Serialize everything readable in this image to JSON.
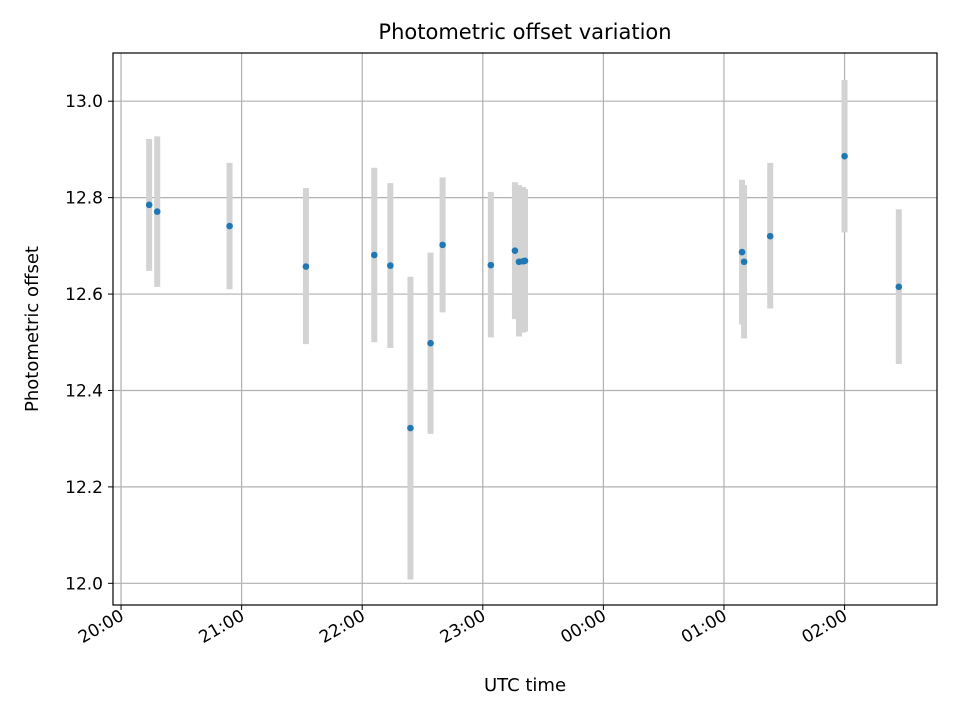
{
  "chart_data": {
    "type": "scatter",
    "title": "Photometric offset variation",
    "xlabel": "UTC time",
    "ylabel": "Photometric offset",
    "x_tick_labels": [
      "20:00",
      "21:00",
      "22:00",
      "23:00",
      "00:00",
      "01:00",
      "02:00"
    ],
    "x_tick_times": [
      "20:00",
      "21:00",
      "22:00",
      "23:00",
      "00:00",
      "01:00",
      "02:00"
    ],
    "y_ticks": [
      12.0,
      12.2,
      12.4,
      12.6,
      12.8,
      13.0
    ],
    "y_tick_labels": [
      "12.0",
      "12.2",
      "12.4",
      "12.6",
      "12.8",
      "13.0"
    ],
    "xlim": [
      "19:56",
      "02:46"
    ],
    "ylim": [
      11.955,
      13.1
    ],
    "grid": true,
    "colors": {
      "point": "#1f77b4",
      "errorbar": "#d3d3d3"
    },
    "series": [
      {
        "points": [
          {
            "time": "20:14",
            "y": 12.785,
            "y_low": 12.648,
            "y_high": 12.922
          },
          {
            "time": "20:18",
            "y": 12.771,
            "y_low": 12.615,
            "y_high": 12.927
          },
          {
            "time": "20:54",
            "y": 12.741,
            "y_low": 12.61,
            "y_high": 12.872
          },
          {
            "time": "21:32",
            "y": 12.657,
            "y_low": 12.496,
            "y_high": 12.82
          },
          {
            "time": "22:06",
            "y": 12.681,
            "y_low": 12.5,
            "y_high": 12.862
          },
          {
            "time": "22:14",
            "y": 12.659,
            "y_low": 12.488,
            "y_high": 12.83
          },
          {
            "time": "22:24",
            "y": 12.322,
            "y_low": 12.008,
            "y_high": 12.636
          },
          {
            "time": "22:34",
            "y": 12.498,
            "y_low": 12.31,
            "y_high": 12.686
          },
          {
            "time": "22:40",
            "y": 12.702,
            "y_low": 12.562,
            "y_high": 12.842
          },
          {
            "time": "23:04",
            "y": 12.66,
            "y_low": 12.51,
            "y_high": 12.812
          },
          {
            "time": "23:16",
            "y": 12.69,
            "y_low": 12.548,
            "y_high": 12.832
          },
          {
            "time": "23:18",
            "y": 12.667,
            "y_low": 12.512,
            "y_high": 12.826
          },
          {
            "time": "23:20",
            "y": 12.668,
            "y_low": 12.52,
            "y_high": 12.822
          },
          {
            "time": "23:21",
            "y": 12.669,
            "y_low": 12.522,
            "y_high": 12.818
          },
          {
            "time": "01:09",
            "y": 12.687,
            "y_low": 12.537,
            "y_high": 12.837
          },
          {
            "time": "01:10",
            "y": 12.667,
            "y_low": 12.508,
            "y_high": 12.826
          },
          {
            "time": "01:23",
            "y": 12.72,
            "y_low": 12.57,
            "y_high": 12.872
          },
          {
            "time": "02:00",
            "y": 12.886,
            "y_low": 12.728,
            "y_high": 13.044
          },
          {
            "time": "02:27",
            "y": 12.615,
            "y_low": 12.455,
            "y_high": 12.776
          }
        ]
      }
    ]
  }
}
